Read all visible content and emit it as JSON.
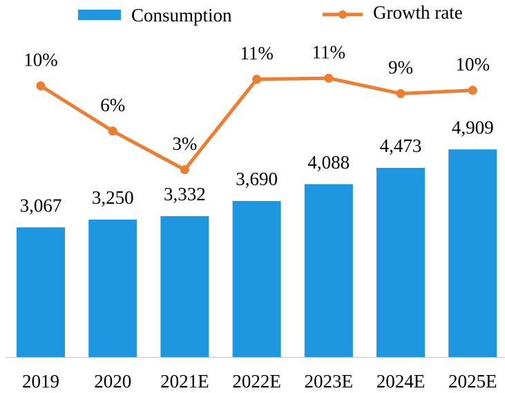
{
  "chart_data": {
    "type": "bar_line",
    "categories": [
      "2019",
      "2020",
      "2021E",
      "2022E",
      "2023E",
      "2024E",
      "2025E"
    ],
    "series": [
      {
        "name": "Consumption",
        "type": "bar",
        "color": "#1f96e0",
        "values": [
          3067,
          3250,
          3332,
          3690,
          4088,
          4473,
          4909
        ],
        "value_labels": [
          "3,067",
          "3,250",
          "3,332",
          "3,690",
          "4,088",
          "4,473",
          "4,909"
        ]
      },
      {
        "name": "Growth rate",
        "type": "line",
        "axis": "y2",
        "color": "#ed7d31",
        "values": [
          10.1,
          6,
          2.5,
          10.7,
          10.8,
          9.4,
          9.7
        ],
        "value_labels": [
          "10%",
          "6%",
          "3%",
          "11%",
          "11%",
          "9%",
          "10%"
        ]
      }
    ],
    "ylim": [
      0,
      8000
    ],
    "y2lim": [
      -14.5,
      16.2
    ],
    "legend": "top"
  }
}
